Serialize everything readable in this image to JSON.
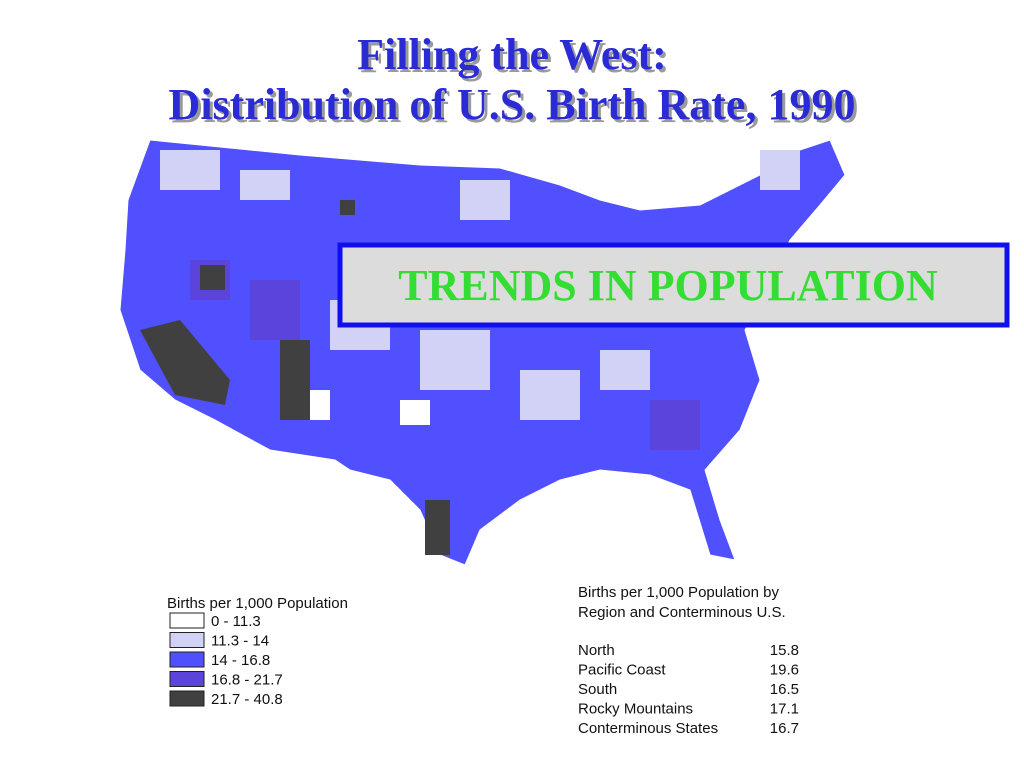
{
  "title": [
    "Filling the West:",
    "Distribution of U.S. Birth Rate, 1990"
  ],
  "banner": "TRENDS IN POPULATION",
  "legend": {
    "title": "Births per 1,000 Population",
    "items": [
      {
        "label": "0 - 11.3",
        "color": "#ffffff"
      },
      {
        "label": "11.3 - 14",
        "color": "#d2d2f7"
      },
      {
        "label": "14 - 16.8",
        "color": "#5050ff"
      },
      {
        "label": "16.8 - 21.7",
        "color": "#5a44dc"
      },
      {
        "label": "21.7 - 40.8",
        "color": "#404040"
      }
    ]
  },
  "table": {
    "title": [
      "Births per 1,000 Population by",
      "Region and Conterminous U.S."
    ],
    "rows": [
      [
        "North",
        15.8
      ],
      [
        "Pacific Coast",
        19.6
      ],
      [
        "South",
        16.5
      ],
      [
        "Rocky Mountains",
        17.1
      ],
      [
        "Conterminous States",
        16.7
      ]
    ]
  }
}
